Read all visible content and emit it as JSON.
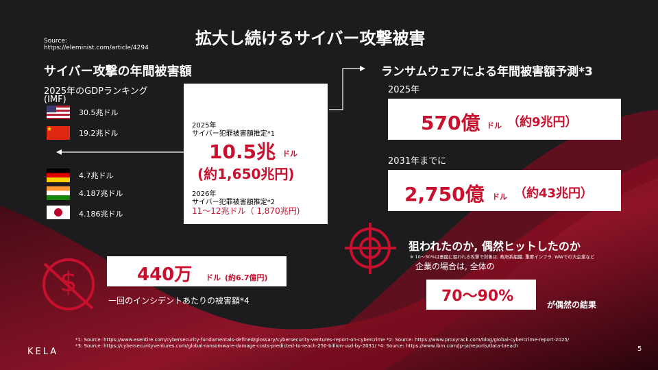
{
  "source": {
    "label": "Source:",
    "url": "https://eleminist.com/article/4294"
  },
  "title": "拡大し続けるサイバー攻撃被害",
  "left": {
    "heading": "サイバー攻撃の年間被害額",
    "gdp_label": "2025年のGDPランキング",
    "gdp_source": "(IMF)",
    "gdp": [
      "30.5兆ドル",
      "19.2兆ドル",
      "4.7兆ドル",
      "4.187兆ドル",
      "4.186兆ドル"
    ]
  },
  "center": {
    "year1": "2025年",
    "label1": "サイバー犯罪被害額推定*1",
    "amount": "10.5兆",
    "unit": "ドル",
    "yen": "(約1,650兆円)",
    "year2": "2026年",
    "label2": "サイバー犯罪被害額推定*2",
    "forecast": "11～12兆ドル（ 1,870兆円)"
  },
  "right": {
    "heading": "ランサムウェアによる年間被害額予測*3",
    "items": [
      {
        "period": "2025年",
        "amount": "570億",
        "unit": "ドル",
        "yen": "（約9兆円）"
      },
      {
        "period": "2031年までに",
        "amount": "2,750億",
        "unit": "ドル",
        "yen": "（約43兆円）"
      }
    ]
  },
  "incident": {
    "amount": "440万",
    "unit": "ドル",
    "yen": "(約6.7億円)",
    "caption": "一回のインシデントあたりの被害額*4"
  },
  "targeted": {
    "heading": "狙われたのか, 偶然ヒットしたのか",
    "note": "※ 10～30%は意図に狙われる攻撃で対象は, 政府系組織, 重要インフラ, WWでの大企業など",
    "lead": "企業の場合は, 全体の",
    "share": "70～90%",
    "tail": "が偶然の結果"
  },
  "footnotes": [
    "*1: Source: https://www.esentire.com/cybersecurity-fundamentals-defined/glossary/cybersecurity-ventures-report-on-cybercrime  *2: Source: https://www.proxyrack.com/blog/global-cybercrime-report-2025/",
    "*3: Source: https://cybersecurityventures.com/global-ransomware-damage-costs-predicted-to-reach-250-billion-usd-by-2031/  *4: Source: https://www.ibm.com/jp-ja/reports/data-breach"
  ],
  "logo": "KELA",
  "page": "5"
}
